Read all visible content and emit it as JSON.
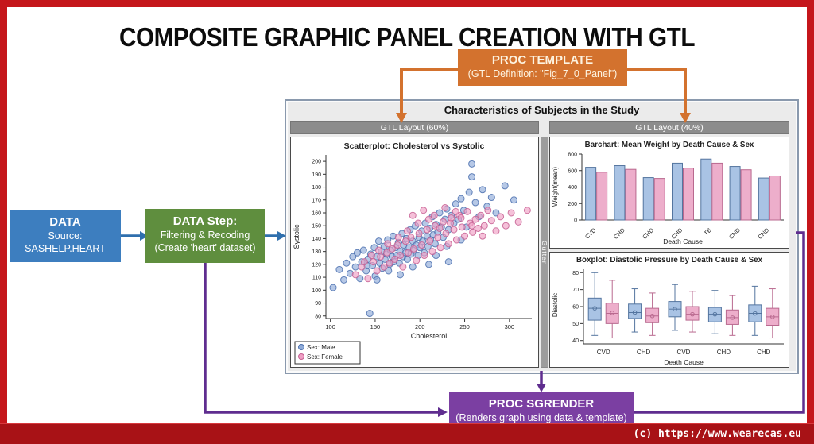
{
  "title": "COMPOSITE GRAPHIC PANEL CREATION WITH GTL",
  "watermark": "(c) https://www.wearecas.eu",
  "flow": {
    "proc_template": {
      "title": "PROC TEMPLATE",
      "subtitle": "(GTL Definition: \"Fig_7_0_Panel\")"
    },
    "data_source": {
      "title": "DATA",
      "line2": "Source:",
      "line3": "SASHELP.HEART"
    },
    "data_step": {
      "title": "DATA Step:",
      "line2": "Filtering & Recoding",
      "line3": "(Create 'heart' dataset)"
    },
    "proc_sgrender": {
      "title": "PROC SGRENDER",
      "subtitle": "(Renders graph using data & template)"
    }
  },
  "panel": {
    "header": "Characteristics of Subjects in the Study",
    "left_layout_label": "GTL Layout (60%)",
    "right_layout_label": "GTL Layout (40%)",
    "gutter_label": "Gutter"
  },
  "colors": {
    "frame_red": "#c5161b",
    "bottom_bar_red": "#a81216",
    "orange": "#d3722e",
    "blue_box": "#3d7ebf",
    "green_box": "#5f8e3e",
    "purple_box": "#7b3fa2",
    "blue_arrow": "#2f6fad",
    "purple_line": "#5f2d8f",
    "panel_bg": "#ebebeb",
    "gtl_bar": "#8c8c8c",
    "gutter": "#9c9c9c",
    "male_fill": "#8fabd8",
    "male_stroke": "#4a6fae",
    "female_fill": "#ef9fc4",
    "female_stroke": "#c65f92",
    "male_bar": "#a9c3e4",
    "male_bar_stroke": "#54759f",
    "female_bar": "#edaecb",
    "female_bar_stroke": "#b9698f"
  },
  "chart_data": [
    {
      "type": "scatter",
      "title": "Scatterplot: Cholesterol vs Systolic",
      "xlabel": "Cholesterol",
      "ylabel": "Systolic",
      "xlim": [
        95,
        325
      ],
      "ylim": [
        78,
        205
      ],
      "xticks": [
        100,
        150,
        200,
        250,
        300
      ],
      "yticks": [
        80,
        90,
        100,
        110,
        120,
        130,
        140,
        150,
        160,
        170,
        180,
        190,
        200
      ],
      "legend": [
        {
          "label": "Sex: Male"
        },
        {
          "label": "Sex: Female"
        }
      ],
      "legend_position": "bottom-left",
      "series": [
        {
          "name": "Sex: Male",
          "points": [
            [
              103,
              102
            ],
            [
              110,
              116
            ],
            [
              115,
              108
            ],
            [
              118,
              121
            ],
            [
              122,
              113
            ],
            [
              125,
              126
            ],
            [
              128,
              118
            ],
            [
              130,
              129
            ],
            [
              133,
              109
            ],
            [
              135,
              122
            ],
            [
              137,
              131
            ],
            [
              140,
              115
            ],
            [
              142,
              124
            ],
            [
              144,
              82
            ],
            [
              145,
              128
            ],
            [
              147,
              119
            ],
            [
              149,
              133
            ],
            [
              150,
              111
            ],
            [
              152,
              126
            ],
            [
              154,
              138
            ],
            [
              155,
              121
            ],
            [
              157,
              130
            ],
            [
              158,
              117
            ],
            [
              160,
              134
            ],
            [
              161,
              124
            ],
            [
              163,
              128
            ],
            [
              164,
              139
            ],
            [
              166,
              120
            ],
            [
              167,
              131
            ],
            [
              169,
              126
            ],
            [
              170,
              142
            ],
            [
              171,
              122
            ],
            [
              173,
              133
            ],
            [
              174,
              127
            ],
            [
              176,
              137
            ],
            [
              177,
              121
            ],
            [
              178,
              130
            ],
            [
              180,
              144
            ],
            [
              181,
              126
            ],
            [
              182,
              135
            ],
            [
              184,
              129
            ],
            [
              185,
              140
            ],
            [
              186,
              124
            ],
            [
              188,
              133
            ],
            [
              189,
              147
            ],
            [
              190,
              128
            ],
            [
              192,
              138
            ],
            [
              193,
              131
            ],
            [
              195,
              150
            ],
            [
              196,
              135
            ],
            [
              198,
              127
            ],
            [
              199,
              141
            ],
            [
              200,
              133
            ],
            [
              202,
              146
            ],
            [
              203,
              138
            ],
            [
              205,
              129
            ],
            [
              206,
              152
            ],
            [
              208,
              142
            ],
            [
              209,
              134
            ],
            [
              211,
              148
            ],
            [
              212,
              139
            ],
            [
              214,
              157
            ],
            [
              215,
              143
            ],
            [
              217,
              136
            ],
            [
              218,
              151
            ],
            [
              220,
              145
            ],
            [
              222,
              160
            ],
            [
              224,
              149
            ],
            [
              226,
              141
            ],
            [
              228,
              155
            ],
            [
              230,
              163
            ],
            [
              232,
              147
            ],
            [
              235,
              158
            ],
            [
              238,
              152
            ],
            [
              240,
              167
            ],
            [
              243,
              155
            ],
            [
              246,
              171
            ],
            [
              249,
              162
            ],
            [
              252,
              149
            ],
            [
              255,
              176
            ],
            [
              258,
              198
            ],
            [
              262,
              168
            ],
            [
              266,
              157
            ],
            [
              270,
              178
            ],
            [
              275,
              165
            ],
            [
              280,
              172
            ],
            [
              285,
              160
            ],
            [
              295,
              181
            ],
            [
              305,
              170
            ],
            [
              258,
              188
            ],
            [
              232,
              122
            ],
            [
              210,
              120
            ],
            [
              192,
              118
            ],
            [
              178,
              112
            ],
            [
              165,
              115
            ],
            [
              152,
              108
            ],
            [
              141,
              119
            ],
            [
              230,
              134
            ],
            [
              246,
              139
            ],
            [
              218,
              127
            ]
          ]
        },
        {
          "name": "Sex: Female",
          "points": [
            [
              128,
              112
            ],
            [
              135,
              118
            ],
            [
              142,
              109
            ],
            [
              148,
              122
            ],
            [
              152,
              115
            ],
            [
              156,
              126
            ],
            [
              160,
              118
            ],
            [
              163,
              129
            ],
            [
              166,
              121
            ],
            [
              169,
              132
            ],
            [
              172,
              124
            ],
            [
              175,
              135
            ],
            [
              178,
              127
            ],
            [
              181,
              118
            ],
            [
              184,
              138
            ],
            [
              187,
              129
            ],
            [
              190,
              141
            ],
            [
              193,
              132
            ],
            [
              196,
              123
            ],
            [
              199,
              144
            ],
            [
              202,
              135
            ],
            [
              205,
              127
            ],
            [
              208,
              147
            ],
            [
              211,
              138
            ],
            [
              214,
              130
            ],
            [
              217,
              150
            ],
            [
              220,
              141
            ],
            [
              223,
              133
            ],
            [
              226,
              153
            ],
            [
              229,
              144
            ],
            [
              232,
              136
            ],
            [
              235,
              156
            ],
            [
              238,
              147
            ],
            [
              241,
              139
            ],
            [
              244,
              158
            ],
            [
              247,
              149
            ],
            [
              250,
              142
            ],
            [
              253,
              161
            ],
            [
              256,
              152
            ],
            [
              259,
              145
            ],
            [
              262,
              155
            ],
            [
              265,
              148
            ],
            [
              268,
              158
            ],
            [
              272,
              150
            ],
            [
              276,
              162
            ],
            [
              280,
              154
            ],
            [
              285,
              146
            ],
            [
              290,
              157
            ],
            [
              296,
              150
            ],
            [
              302,
              160
            ],
            [
              310,
              153
            ],
            [
              320,
              162
            ],
            [
              186,
              146
            ],
            [
              198,
              152
            ],
            [
              210,
              155
            ],
            [
              222,
              148
            ],
            [
              234,
              152
            ],
            [
              246,
              156
            ],
            [
              258,
              150
            ],
            [
              270,
              142
            ],
            [
              176,
              141
            ],
            [
              164,
              136
            ],
            [
              154,
              131
            ],
            [
              146,
              127
            ],
            [
              138,
              122
            ],
            [
              192,
              158
            ],
            [
              204,
              162
            ],
            [
              216,
              158
            ],
            [
              228,
              164
            ],
            [
              240,
              161
            ]
          ]
        }
      ]
    },
    {
      "type": "bar",
      "title": "Barchart: Mean Weight by Death Cause & Sex",
      "xlabel": "Death Cause",
      "ylabel": "Weight(mean)",
      "ylim": [
        0,
        800
      ],
      "yticks": [
        0,
        200,
        400,
        600,
        800
      ],
      "categories": [
        "CVD",
        "CHD",
        "CHD",
        "CHD",
        "TB",
        "CND",
        "CND"
      ],
      "series": [
        {
          "name": "Male",
          "values": [
            640,
            660,
            515,
            690,
            740,
            650,
            510
          ]
        },
        {
          "name": "Female",
          "values": [
            580,
            615,
            505,
            630,
            690,
            610,
            535
          ]
        }
      ]
    },
    {
      "type": "box",
      "title": "Boxplot: Diastolic Pressure by Death Cause & Sex",
      "xlabel": "Death Cause",
      "ylabel": "Diastolic",
      "ylim": [
        38,
        82
      ],
      "yticks": [
        40,
        50,
        60,
        70,
        80
      ],
      "categories": [
        "CVD",
        "CHD",
        "CVD",
        "CHD",
        "CHD"
      ],
      "series": [
        {
          "name": "Male",
          "boxes": [
            {
              "lo": 43,
              "q1": 52,
              "med": 59,
              "q3": 65,
              "hi": 80,
              "mean": 59
            },
            {
              "lo": 45,
              "q1": 53,
              "med": 56.5,
              "q3": 61.5,
              "hi": 70.5,
              "mean": 56.5
            },
            {
              "lo": 46,
              "q1": 54,
              "med": 58.5,
              "q3": 63,
              "hi": 73,
              "mean": 58.5
            },
            {
              "lo": 44,
              "q1": 51,
              "med": 55.5,
              "q3": 59.5,
              "hi": 69.5,
              "mean": 55.5
            },
            {
              "lo": 43,
              "q1": 51,
              "med": 56,
              "q3": 61,
              "hi": 72,
              "mean": 56
            }
          ]
        },
        {
          "name": "Female",
          "boxes": [
            {
              "lo": 41.5,
              "q1": 50,
              "med": 56,
              "q3": 62,
              "hi": 75.5,
              "mean": 56.3
            },
            {
              "lo": 43,
              "q1": 50.5,
              "med": 54.5,
              "q3": 59,
              "hi": 68,
              "mean": 54.5
            },
            {
              "lo": 45,
              "q1": 52,
              "med": 55.5,
              "q3": 60,
              "hi": 69,
              "mean": 55.5
            },
            {
              "lo": 43,
              "q1": 49.5,
              "med": 53.5,
              "q3": 58,
              "hi": 66.5,
              "mean": 53.5
            },
            {
              "lo": 41.5,
              "q1": 49,
              "med": 54,
              "q3": 59,
              "hi": 70.5,
              "mean": 54
            }
          ]
        }
      ]
    }
  ]
}
